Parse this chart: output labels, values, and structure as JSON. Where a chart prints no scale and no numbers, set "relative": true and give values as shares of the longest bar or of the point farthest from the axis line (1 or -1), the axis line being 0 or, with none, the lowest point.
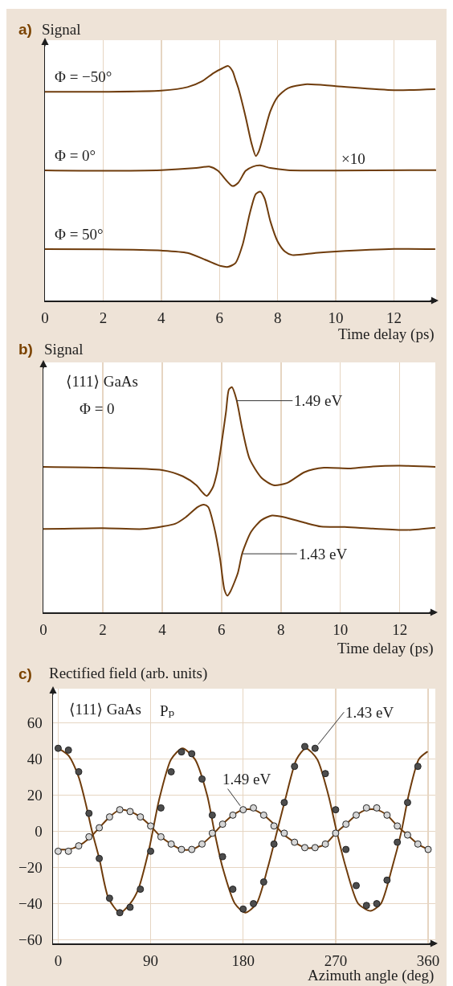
{
  "chart_data": [
    {
      "type": "line",
      "title": "a)",
      "ylabel": "Signal",
      "xlabel": "Time delay (ps)",
      "relative": true,
      "xlim": [
        0,
        13.45
      ],
      "xticks": [
        0,
        2,
        4,
        6,
        8,
        10,
        12
      ],
      "grid": "x",
      "tick_labels": "x",
      "line_style": "solid",
      "annotations": [
        "×10"
      ],
      "series": [
        {
          "name": "Φ = −50°",
          "color": "#6f3c0c",
          "x": [
            0,
            2,
            4,
            4.9,
            5.4,
            5.8,
            6.1,
            6.3,
            6.45,
            6.55,
            6.65,
            6.9,
            7.1,
            7.25,
            7.35,
            7.55,
            7.75,
            8,
            8.35,
            8.95,
            10,
            12,
            13.4
          ],
          "values": [
            0.89,
            0.89,
            0.895,
            0.91,
            0.935,
            0.97,
            0.99,
            1,
            0.978,
            0.942,
            0.905,
            0.782,
            0.671,
            0.616,
            0.635,
            0.721,
            0.807,
            0.868,
            0.905,
            0.922,
            0.914,
            0.897,
            0.901
          ]
        },
        {
          "name": "Φ = 0°",
          "color": "#6f3c0c",
          "x": [
            0,
            2,
            4,
            5.2,
            5.65,
            5.95,
            6.25,
            6.45,
            6.65,
            6.9,
            7.15,
            7.4,
            7.75,
            8.35,
            10,
            13.45
          ],
          "values": [
            0.555,
            0.553,
            0.556,
            0.565,
            0.571,
            0.553,
            0.51,
            0.488,
            0.503,
            0.553,
            0.571,
            0.576,
            0.565,
            0.556,
            0.554,
            0.556
          ]
        },
        {
          "name": "Φ = 50°",
          "color": "#6f3c0c",
          "x": [
            0,
            2,
            4,
            4.9,
            5.55,
            6.05,
            6.3,
            6.55,
            6.8,
            7.05,
            7.25,
            7.4,
            7.55,
            7.75,
            8,
            8.25,
            8.5,
            9.3,
            10,
            12,
            13.4
          ],
          "values": [
            0.219,
            0.218,
            0.213,
            0.203,
            0.172,
            0.147,
            0.144,
            0.16,
            0.24,
            0.375,
            0.454,
            0.464,
            0.436,
            0.338,
            0.252,
            0.209,
            0.194,
            0.203,
            0.209,
            0.22,
            0.219
          ]
        }
      ]
    },
    {
      "type": "line",
      "title": "b)",
      "ylabel": "Signal",
      "xlabel": "Time delay (ps)",
      "relative": true,
      "xlim": [
        0,
        13.2
      ],
      "xticks": [
        0,
        2,
        4,
        6,
        8,
        10,
        12
      ],
      "grid": "x",
      "tick_labels": "x",
      "line_style": "solid",
      "annotations": [
        "⟨111⟩ GaAs",
        "Φ = 0",
        {
          "text": "1.49 eV",
          "x": 6.5,
          "y": 0.94
        },
        {
          "text": "1.43 eV",
          "x": 6.7,
          "y": 0.26
        }
      ],
      "series": [
        {
          "color": "#6f3c0c",
          "x": [
            0,
            2,
            4,
            4.7,
            5.15,
            5.35,
            5.5,
            5.7,
            5.85,
            6,
            6.15,
            6.25,
            6.35,
            6.5,
            6.7,
            6.95,
            7.35,
            7.75,
            8.2,
            8.8,
            9.45,
            10.35,
            11.1,
            12,
            13.2
          ],
          "values": [
            0.646,
            0.642,
            0.632,
            0.604,
            0.565,
            0.534,
            0.517,
            0.553,
            0.623,
            0.75,
            0.89,
            0.99,
            1,
            0.947,
            0.813,
            0.68,
            0.597,
            0.565,
            0.574,
            0.623,
            0.642,
            0.639,
            0.648,
            0.651,
            0.646
          ]
        },
        {
          "color": "#6f3c0c",
          "x": [
            0,
            2,
            3.35,
            4,
            4.45,
            4.8,
            5.2,
            5.4,
            5.55,
            5.75,
            5.95,
            6.1,
            6.2,
            6.3,
            6.55,
            6.7,
            7,
            7.35,
            7.7,
            8.1,
            8.8,
            9.35,
            10.15,
            11.1,
            12.25,
            13.2
          ],
          "values": [
            0.37,
            0.374,
            0.37,
            0.381,
            0.394,
            0.423,
            0.468,
            0.478,
            0.468,
            0.379,
            0.239,
            0.099,
            0.074,
            0.093,
            0.175,
            0.264,
            0.359,
            0.41,
            0.43,
            0.423,
            0.398,
            0.381,
            0.379,
            0.372,
            0.366,
            0.376
          ]
        }
      ]
    },
    {
      "type": "line",
      "title": "c)",
      "ylabel": "Rectified field (arb. units)",
      "xlabel": "Azimuth angle (deg)",
      "xlim": [
        -5,
        367
      ],
      "xticks": [
        0,
        90,
        180,
        270,
        360
      ],
      "ylim": [
        -62,
        79
      ],
      "yticks": [
        -60,
        -40,
        -20,
        0,
        20,
        40,
        60
      ],
      "grid": true,
      "line_style": "solid",
      "annotations": [
        "⟨111⟩ GaAs",
        "Pₚ",
        {
          "text": "1.43 eV",
          "x": 250,
          "y": 46
        },
        {
          "text": "1.49 eV",
          "x": 180,
          "y": 12
        }
      ],
      "series": [
        {
          "color": "#6f3c0c",
          "x": [
            0,
            10,
            20,
            27,
            33,
            40,
            49,
            60,
            70,
            78,
            88,
            92,
            98,
            110,
            121,
            133,
            145,
            152,
            160,
            172,
            182,
            193,
            204,
            213,
            222,
            232,
            241,
            252,
            263,
            271,
            280,
            292,
            304,
            314,
            325,
            334,
            341,
            351,
            359
          ],
          "values": [
            46,
            42,
            30,
            15,
            0,
            -15,
            -37,
            -45,
            -40,
            -32,
            -11,
            0,
            17,
            40,
            46,
            40,
            20,
            0,
            -20,
            -40,
            -45,
            -40,
            -20,
            0,
            20,
            40,
            46,
            40,
            20,
            0,
            -20,
            -40,
            -44,
            -40,
            -20,
            0,
            20,
            40,
            44
          ]
        },
        {
          "color": "#6f3c0c",
          "x": [
            0,
            10,
            20,
            30,
            40,
            50,
            60,
            70,
            80,
            90,
            100,
            110,
            120,
            130,
            140,
            150,
            160,
            170,
            180,
            190,
            200,
            210,
            220,
            230,
            240,
            250,
            260,
            270,
            280,
            290,
            300,
            310,
            320,
            330,
            340,
            350,
            360
          ],
          "values": [
            -10,
            -10,
            -8,
            -4,
            2,
            8,
            12,
            11,
            8,
            3,
            -3,
            -7,
            -10,
            -10,
            -7,
            -2,
            4,
            9,
            12,
            12,
            9,
            4,
            -2,
            -6,
            -9,
            -9,
            -7,
            -1,
            4,
            9,
            12,
            12,
            9,
            3,
            -2,
            -7,
            -10
          ]
        },
        {
          "type": "scatter",
          "marker": "circle",
          "color": "#4d4d4d",
          "x": [
            0,
            10,
            20,
            30,
            40,
            50,
            60,
            70,
            80,
            90,
            100,
            110,
            120,
            130,
            140,
            150,
            160,
            170,
            180,
            190,
            200,
            210,
            220,
            230,
            240,
            250,
            260,
            270,
            280,
            290,
            300,
            310,
            320,
            330,
            340,
            350
          ],
          "values": [
            46,
            45,
            33,
            10,
            -15,
            -37,
            -45,
            -42,
            -32,
            -11,
            13,
            33,
            44,
            43,
            29,
            9,
            -14,
            -32,
            -43,
            -40,
            -28,
            -7,
            16,
            36,
            47,
            46,
            32,
            12,
            -10,
            -30,
            -41,
            -40,
            -27,
            -6,
            16,
            36
          ]
        },
        {
          "type": "scatter",
          "marker": "circle",
          "color": "#d6d6d6",
          "x": [
            0,
            10,
            20,
            30,
            40,
            50,
            60,
            70,
            80,
            90,
            100,
            110,
            120,
            130,
            140,
            150,
            160,
            170,
            180,
            190,
            200,
            210,
            220,
            230,
            240,
            250,
            260,
            270,
            280,
            290,
            300,
            310,
            320,
            330,
            340,
            350,
            360
          ],
          "values": [
            -11,
            -11,
            -8,
            -3,
            2,
            8,
            12,
            11,
            8,
            3,
            -3,
            -7,
            -10,
            -10,
            -7,
            -1,
            4,
            9,
            12,
            13,
            9,
            3,
            -1,
            -6,
            -9,
            -9,
            -7,
            -1,
            4,
            9,
            13,
            13,
            9,
            3,
            -2,
            -7,
            -10
          ]
        }
      ]
    }
  ]
}
